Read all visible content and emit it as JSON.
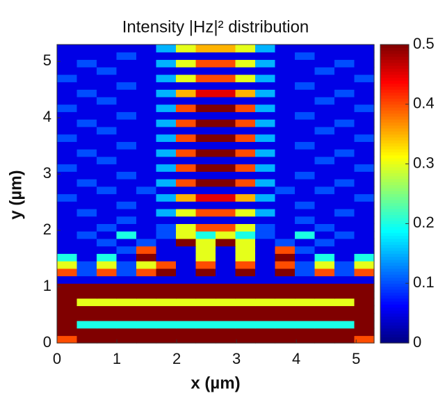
{
  "chart_data": {
    "type": "heatmap",
    "title": "Intensity |Hz|² distribution",
    "x_label": "x (µm)",
    "y_label": "y (µm)",
    "xlim": [
      0,
      5.3
    ],
    "ylim": [
      0,
      5.3
    ],
    "xticks": [
      0,
      1,
      2,
      3,
      4,
      5
    ],
    "yticks": [
      0,
      1,
      2,
      3,
      4,
      5
    ],
    "colormap": "jet",
    "zlim": [
      0,
      0.5
    ],
    "zticks": [
      0,
      0.1,
      0.2,
      0.3,
      0.4,
      0.5
    ],
    "z": [
      [
        0.4,
        0.5,
        0.5,
        0.5,
        0.5,
        0.5,
        0.5,
        0.5,
        0.5,
        0.5,
        0.5,
        0.5,
        0.5,
        0.5,
        0.5,
        0.4
      ],
      [
        0.5,
        0.5,
        0.5,
        0.5,
        0.5,
        0.5,
        0.5,
        0.5,
        0.5,
        0.5,
        0.5,
        0.5,
        0.5,
        0.5,
        0.5,
        0.5
      ],
      [
        0.5,
        0.2,
        0.2,
        0.2,
        0.2,
        0.2,
        0.2,
        0.2,
        0.2,
        0.2,
        0.2,
        0.2,
        0.2,
        0.2,
        0.2,
        0.5
      ],
      [
        0.5,
        0.5,
        0.5,
        0.5,
        0.5,
        0.5,
        0.5,
        0.5,
        0.5,
        0.5,
        0.5,
        0.5,
        0.5,
        0.5,
        0.5,
        0.5
      ],
      [
        0.5,
        0.5,
        0.5,
        0.5,
        0.5,
        0.5,
        0.5,
        0.5,
        0.5,
        0.5,
        0.5,
        0.5,
        0.5,
        0.5,
        0.5,
        0.5
      ],
      [
        0.5,
        0.3,
        0.3,
        0.3,
        0.3,
        0.3,
        0.3,
        0.3,
        0.3,
        0.3,
        0.3,
        0.3,
        0.3,
        0.3,
        0.3,
        0.5
      ],
      [
        0.5,
        0.5,
        0.5,
        0.5,
        0.5,
        0.5,
        0.5,
        0.5,
        0.5,
        0.5,
        0.5,
        0.5,
        0.5,
        0.5,
        0.5,
        0.5
      ],
      [
        0.5,
        0.5,
        0.5,
        0.5,
        0.5,
        0.5,
        0.5,
        0.5,
        0.5,
        0.5,
        0.5,
        0.5,
        0.5,
        0.5,
        0.5,
        0.5
      ],
      [
        0.05,
        0.05,
        0.05,
        0.05,
        0.05,
        0.05,
        0.05,
        0.05,
        0.05,
        0.05,
        0.05,
        0.05,
        0.05,
        0.05,
        0.05,
        0.05
      ],
      [
        0.4,
        0.1,
        0.4,
        0.1,
        0.4,
        0.5,
        0.05,
        0.5,
        0.05,
        0.5,
        0.05,
        0.5,
        0.1,
        0.4,
        0.1,
        0.4
      ],
      [
        0.3,
        0.1,
        0.3,
        0.1,
        0.3,
        0.4,
        0.05,
        0.4,
        0.05,
        0.4,
        0.05,
        0.4,
        0.1,
        0.3,
        0.1,
        0.3
      ],
      [
        0.2,
        0.05,
        0.2,
        0.05,
        0.5,
        0.05,
        0.05,
        0.3,
        0.05,
        0.3,
        0.05,
        0.5,
        0.05,
        0.2,
        0.05,
        0.2
      ],
      [
        0.05,
        0.05,
        0.05,
        0.1,
        0.4,
        0.05,
        0.05,
        0.3,
        0.05,
        0.3,
        0.05,
        0.4,
        0.1,
        0.05,
        0.05,
        0.05
      ],
      [
        0.05,
        0.05,
        0.1,
        0.05,
        0.1,
        0.05,
        0.5,
        0.3,
        0.5,
        0.3,
        0.05,
        0.1,
        0.05,
        0.1,
        0.05,
        0.05
      ],
      [
        0.05,
        0.1,
        0.05,
        0.2,
        0.05,
        0.1,
        0.3,
        0.2,
        0.3,
        0.2,
        0.1,
        0.05,
        0.2,
        0.05,
        0.1,
        0.05
      ],
      [
        0.05,
        0.05,
        0.1,
        0.05,
        0.05,
        0.1,
        0.3,
        0.4,
        0.4,
        0.3,
        0.1,
        0.05,
        0.05,
        0.1,
        0.05,
        0.05
      ],
      [
        0.05,
        0.05,
        0.05,
        0.1,
        0.05,
        0.05,
        0.05,
        0.05,
        0.05,
        0.05,
        0.05,
        0.05,
        0.1,
        0.05,
        0.05,
        0.05
      ],
      [
        0.05,
        0.1,
        0.05,
        0.05,
        0.05,
        0.15,
        0.3,
        0.4,
        0.4,
        0.3,
        0.15,
        0.05,
        0.05,
        0.05,
        0.1,
        0.05
      ],
      [
        0.05,
        0.05,
        0.05,
        0.1,
        0.05,
        0.05,
        0.05,
        0.05,
        0.05,
        0.05,
        0.05,
        0.05,
        0.1,
        0.05,
        0.05,
        0.05
      ],
      [
        0.1,
        0.05,
        0.05,
        0.05,
        0.05,
        0.15,
        0.35,
        0.45,
        0.45,
        0.35,
        0.15,
        0.05,
        0.05,
        0.05,
        0.05,
        0.1
      ],
      [
        0.05,
        0.05,
        0.1,
        0.05,
        0.1,
        0.05,
        0.05,
        0.05,
        0.05,
        0.05,
        0.05,
        0.1,
        0.05,
        0.1,
        0.05,
        0.05
      ],
      [
        0.05,
        0.1,
        0.05,
        0.05,
        0.05,
        0.15,
        0.4,
        0.5,
        0.5,
        0.4,
        0.15,
        0.05,
        0.05,
        0.05,
        0.1,
        0.05
      ],
      [
        0.05,
        0.05,
        0.05,
        0.1,
        0.05,
        0.05,
        0.05,
        0.05,
        0.05,
        0.05,
        0.05,
        0.05,
        0.1,
        0.05,
        0.05,
        0.05
      ],
      [
        0.1,
        0.05,
        0.05,
        0.05,
        0.05,
        0.15,
        0.4,
        0.5,
        0.5,
        0.4,
        0.15,
        0.05,
        0.05,
        0.05,
        0.05,
        0.1
      ],
      [
        0.05,
        0.05,
        0.1,
        0.05,
        0.05,
        0.05,
        0.05,
        0.05,
        0.05,
        0.05,
        0.05,
        0.05,
        0.05,
        0.1,
        0.05,
        0.05
      ],
      [
        0.05,
        0.1,
        0.05,
        0.05,
        0.05,
        0.15,
        0.4,
        0.5,
        0.5,
        0.4,
        0.15,
        0.05,
        0.05,
        0.05,
        0.1,
        0.05
      ],
      [
        0.05,
        0.05,
        0.05,
        0.1,
        0.05,
        0.05,
        0.05,
        0.05,
        0.05,
        0.05,
        0.05,
        0.05,
        0.1,
        0.05,
        0.05,
        0.05
      ],
      [
        0.1,
        0.05,
        0.05,
        0.05,
        0.05,
        0.15,
        0.4,
        0.5,
        0.5,
        0.4,
        0.15,
        0.05,
        0.05,
        0.05,
        0.05,
        0.1
      ],
      [
        0.05,
        0.05,
        0.1,
        0.05,
        0.05,
        0.05,
        0.05,
        0.05,
        0.05,
        0.05,
        0.05,
        0.05,
        0.05,
        0.1,
        0.05,
        0.05
      ],
      [
        0.05,
        0.1,
        0.05,
        0.05,
        0.05,
        0.15,
        0.4,
        0.5,
        0.5,
        0.4,
        0.15,
        0.05,
        0.05,
        0.05,
        0.1,
        0.05
      ],
      [
        0.05,
        0.05,
        0.05,
        0.1,
        0.05,
        0.05,
        0.05,
        0.05,
        0.05,
        0.05,
        0.05,
        0.05,
        0.1,
        0.05,
        0.05,
        0.05
      ],
      [
        0.1,
        0.05,
        0.05,
        0.05,
        0.05,
        0.15,
        0.4,
        0.5,
        0.5,
        0.4,
        0.15,
        0.05,
        0.05,
        0.05,
        0.05,
        0.1
      ],
      [
        0.05,
        0.05,
        0.1,
        0.05,
        0.05,
        0.05,
        0.05,
        0.05,
        0.05,
        0.05,
        0.05,
        0.05,
        0.05,
        0.1,
        0.05,
        0.05
      ],
      [
        0.05,
        0.1,
        0.05,
        0.05,
        0.05,
        0.15,
        0.35,
        0.45,
        0.45,
        0.35,
        0.15,
        0.05,
        0.05,
        0.05,
        0.1,
        0.05
      ],
      [
        0.05,
        0.05,
        0.05,
        0.1,
        0.05,
        0.05,
        0.05,
        0.05,
        0.05,
        0.05,
        0.05,
        0.05,
        0.1,
        0.05,
        0.05,
        0.05
      ],
      [
        0.1,
        0.05,
        0.05,
        0.05,
        0.05,
        0.15,
        0.3,
        0.4,
        0.4,
        0.3,
        0.15,
        0.05,
        0.05,
        0.05,
        0.05,
        0.1
      ],
      [
        0.05,
        0.05,
        0.1,
        0.05,
        0.05,
        0.05,
        0.05,
        0.05,
        0.05,
        0.05,
        0.05,
        0.05,
        0.05,
        0.1,
        0.05,
        0.05
      ],
      [
        0.05,
        0.1,
        0.05,
        0.05,
        0.05,
        0.15,
        0.3,
        0.4,
        0.4,
        0.3,
        0.15,
        0.05,
        0.05,
        0.05,
        0.1,
        0.05
      ],
      [
        0.05,
        0.05,
        0.05,
        0.1,
        0.05,
        0.05,
        0.05,
        0.05,
        0.05,
        0.05,
        0.05,
        0.05,
        0.1,
        0.05,
        0.05,
        0.05
      ],
      [
        0.05,
        0.05,
        0.05,
        0.05,
        0.05,
        0.15,
        0.3,
        0.35,
        0.35,
        0.3,
        0.15,
        0.05,
        0.05,
        0.05,
        0.05,
        0.05
      ]
    ]
  }
}
